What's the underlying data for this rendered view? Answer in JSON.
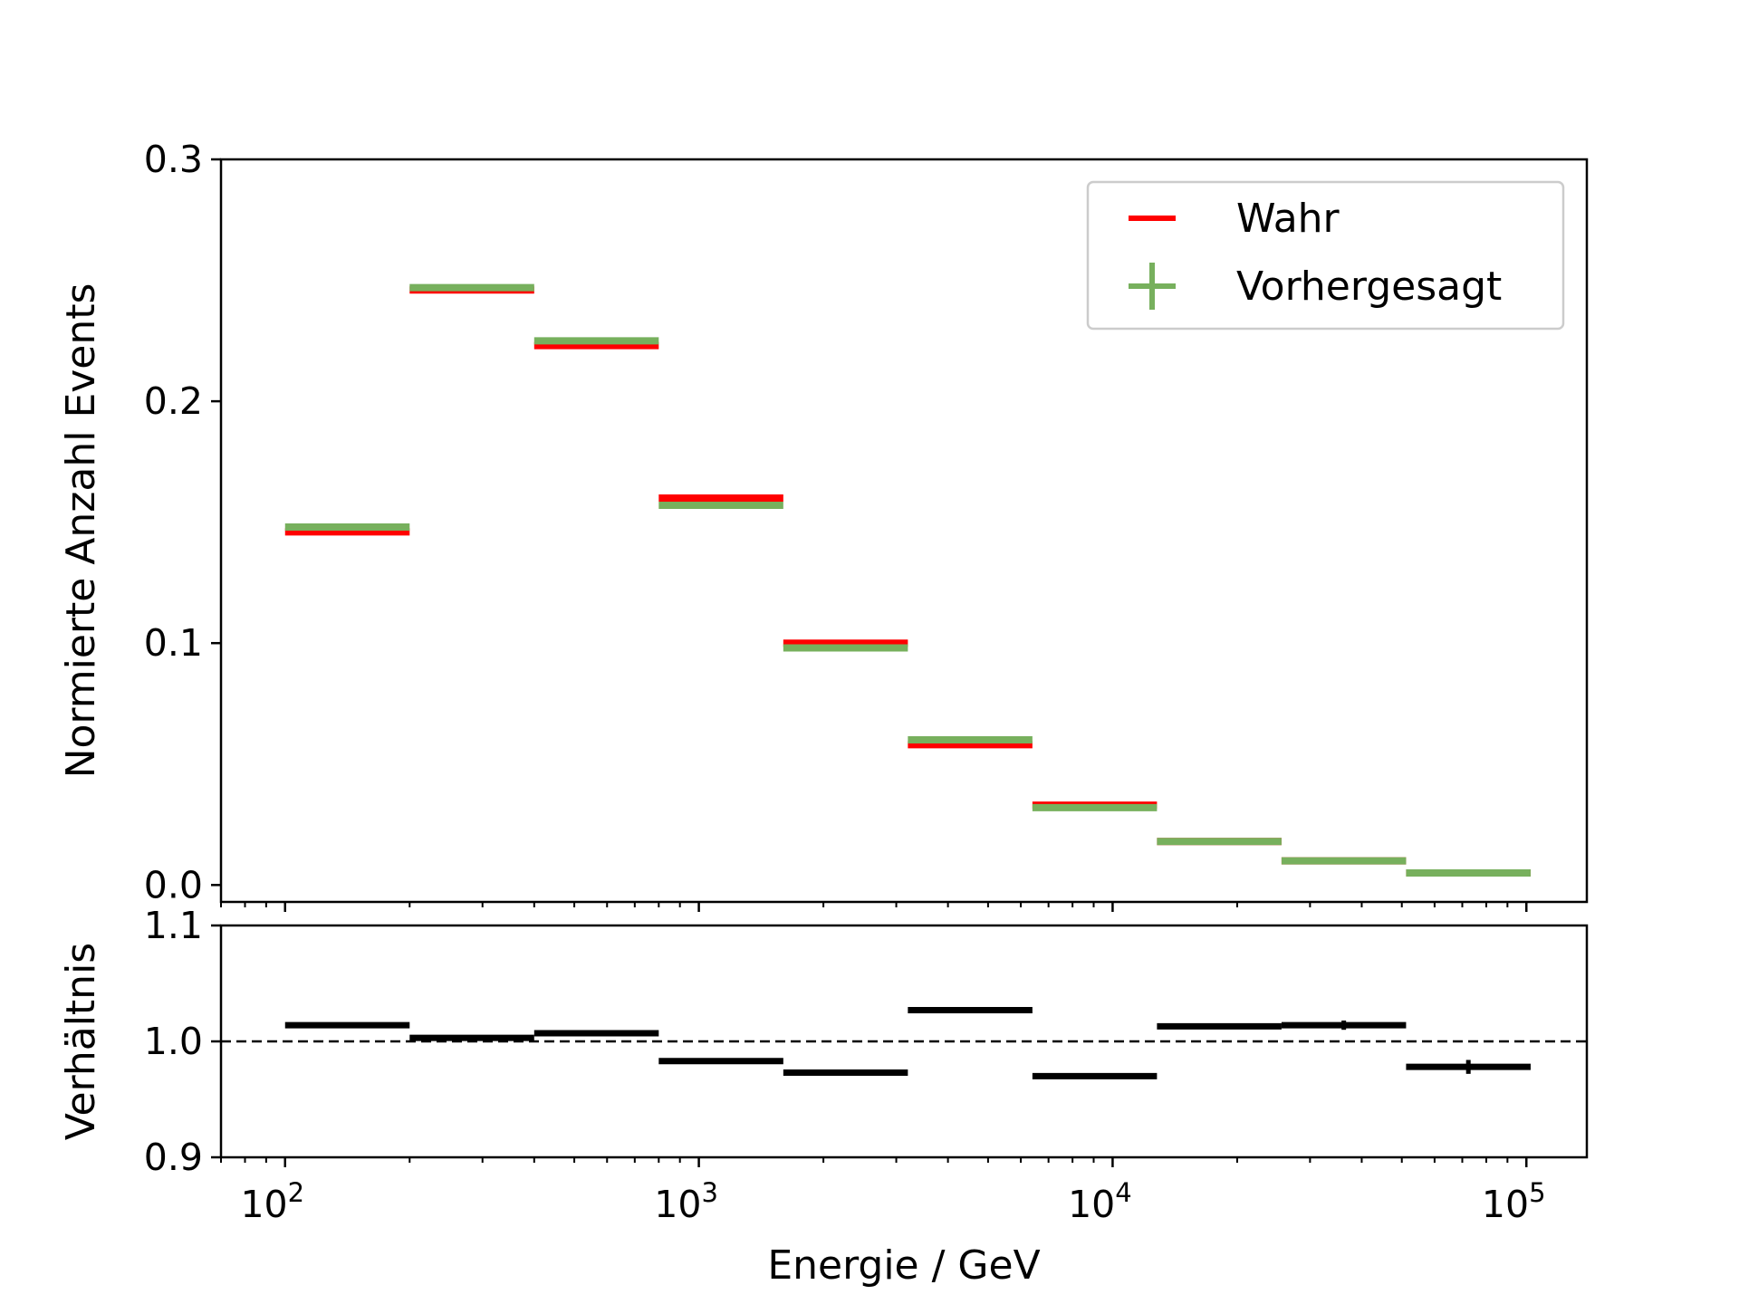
{
  "chart_data": [
    {
      "type": "step",
      "panel": "main",
      "xscale": "log",
      "xlim": [
        70,
        140000
      ],
      "ylim": [
        -0.007,
        0.3
      ],
      "ylabel": "Normierte Anzahl Events",
      "yticks": [
        0.0,
        0.1,
        0.2,
        0.3
      ],
      "ytick_labels": [
        "0.0",
        "0.1",
        "0.2",
        "0.3"
      ],
      "bin_edges": [
        100,
        200,
        400,
        800,
        1600,
        3200,
        6400,
        12800,
        25600,
        51200,
        102400
      ],
      "series": [
        {
          "name": "Wahr",
          "color": "#ff0000",
          "values": [
            0.146,
            0.246,
            0.223,
            0.16,
            0.1,
            0.058,
            0.033,
            0.018,
            0.01,
            0.005
          ]
        },
        {
          "name": "Vorhergesagt",
          "color": "#77b05d",
          "values": [
            0.148,
            0.247,
            0.225,
            0.157,
            0.098,
            0.06,
            0.032,
            0.018,
            0.01,
            0.005
          ]
        }
      ],
      "legend_position": "upper right"
    },
    {
      "type": "errorbar",
      "panel": "ratio",
      "xscale": "log",
      "xlim": [
        70,
        140000
      ],
      "ylim": [
        0.9,
        1.1
      ],
      "xlabel": "Energie / GeV",
      "ylabel": "Verhältnis",
      "yticks": [
        0.9,
        1.0,
        1.1
      ],
      "ytick_labels": [
        "0.9",
        "1.0",
        "1.1"
      ],
      "xticks": [
        100,
        1000,
        10000,
        100000
      ],
      "xtick_labels": [
        {
          "base": "10",
          "exp": "2"
        },
        {
          "base": "10",
          "exp": "3"
        },
        {
          "base": "10",
          "exp": "4"
        },
        {
          "base": "10",
          "exp": "5"
        }
      ],
      "reference_line": 1.0,
      "color": "#000000",
      "values": [
        1.014,
        1.003,
        1.007,
        0.983,
        0.973,
        1.027,
        0.97,
        1.013,
        1.014,
        0.978
      ],
      "errors": [
        0.001,
        0.001,
        0.001,
        0.001,
        0.001,
        0.001,
        0.001,
        0.001,
        0.004,
        0.006
      ]
    }
  ]
}
